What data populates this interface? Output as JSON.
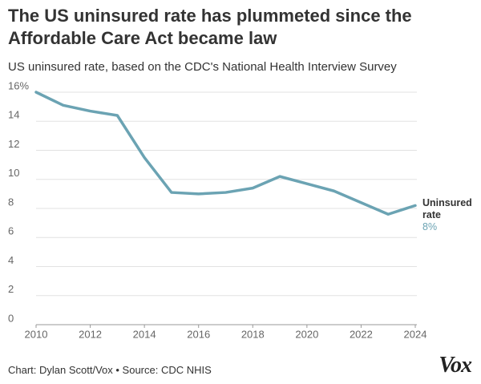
{
  "chart_data": {
    "type": "line",
    "title": "The US uninsured rate has plummeted since the Affordable Care Act became law",
    "subtitle": "US uninsured rate, based on the CDC's National Health Interview Survey",
    "x": [
      2010,
      2011,
      2012,
      2013,
      2014,
      2015,
      2016,
      2017,
      2018,
      2019,
      2020,
      2021,
      2022,
      2023,
      2024
    ],
    "series": [
      {
        "name": "Uninsured rate",
        "color": "#6ba3b3",
        "values": [
          16.0,
          15.1,
          14.7,
          14.4,
          11.5,
          9.1,
          9.0,
          9.1,
          9.4,
          10.2,
          9.7,
          9.2,
          8.4,
          7.6,
          8.2
        ],
        "value_labels": [
          null,
          null,
          null,
          null,
          null,
          null,
          null,
          null,
          null,
          null,
          null,
          null,
          null,
          null,
          "8%"
        ]
      }
    ],
    "xlim": [
      2010,
      2024
    ],
    "xticks": [
      2010,
      2012,
      2014,
      2016,
      2018,
      2020,
      2022,
      2024
    ],
    "ylim": [
      0,
      16
    ],
    "yticks": [
      0,
      2,
      4,
      6,
      8,
      10,
      12,
      14,
      {
        "value": 16,
        "label": "16%"
      }
    ],
    "grid": true,
    "footer": "Chart: Dylan Scott/Vox • Source: CDC NHIS",
    "logo": "Vox"
  }
}
